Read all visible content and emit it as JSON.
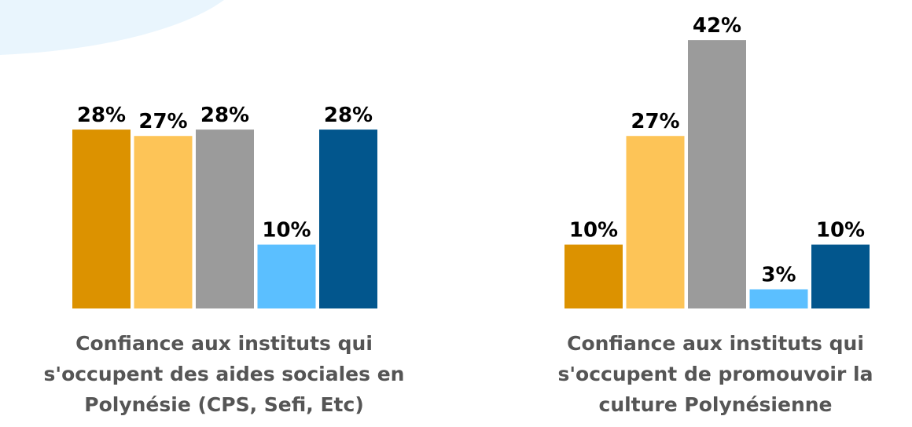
{
  "chart_data": [
    {
      "type": "bar",
      "title": [
        "Confiance aux instituts qui",
        "s'occupent des aides sociales en",
        "Polynésie (CPS, Sefi, Etc)"
      ],
      "categories": [
        null,
        null,
        null,
        null,
        null
      ],
      "values": [
        28,
        27,
        28,
        10,
        28
      ],
      "value_labels": [
        "28%",
        "27%",
        "28%",
        "10%",
        "28%"
      ],
      "colors": [
        "#dc9200",
        "#fdc457",
        "#9b9b9b",
        "#5bbfff",
        "#02568d"
      ]
    },
    {
      "type": "bar",
      "title": [
        "Confiance aux instituts qui",
        "s'occupent de promouvoir la",
        "culture Polynésienne"
      ],
      "categories": [
        null,
        null,
        null,
        null,
        null
      ],
      "values": [
        10,
        27,
        42,
        3,
        10
      ],
      "value_labels": [
        "10%",
        "27%",
        "42%",
        "3%",
        "10%"
      ],
      "colors": [
        "#dc9200",
        "#fdc457",
        "#9b9b9b",
        "#5bbfff",
        "#02568d"
      ]
    }
  ]
}
